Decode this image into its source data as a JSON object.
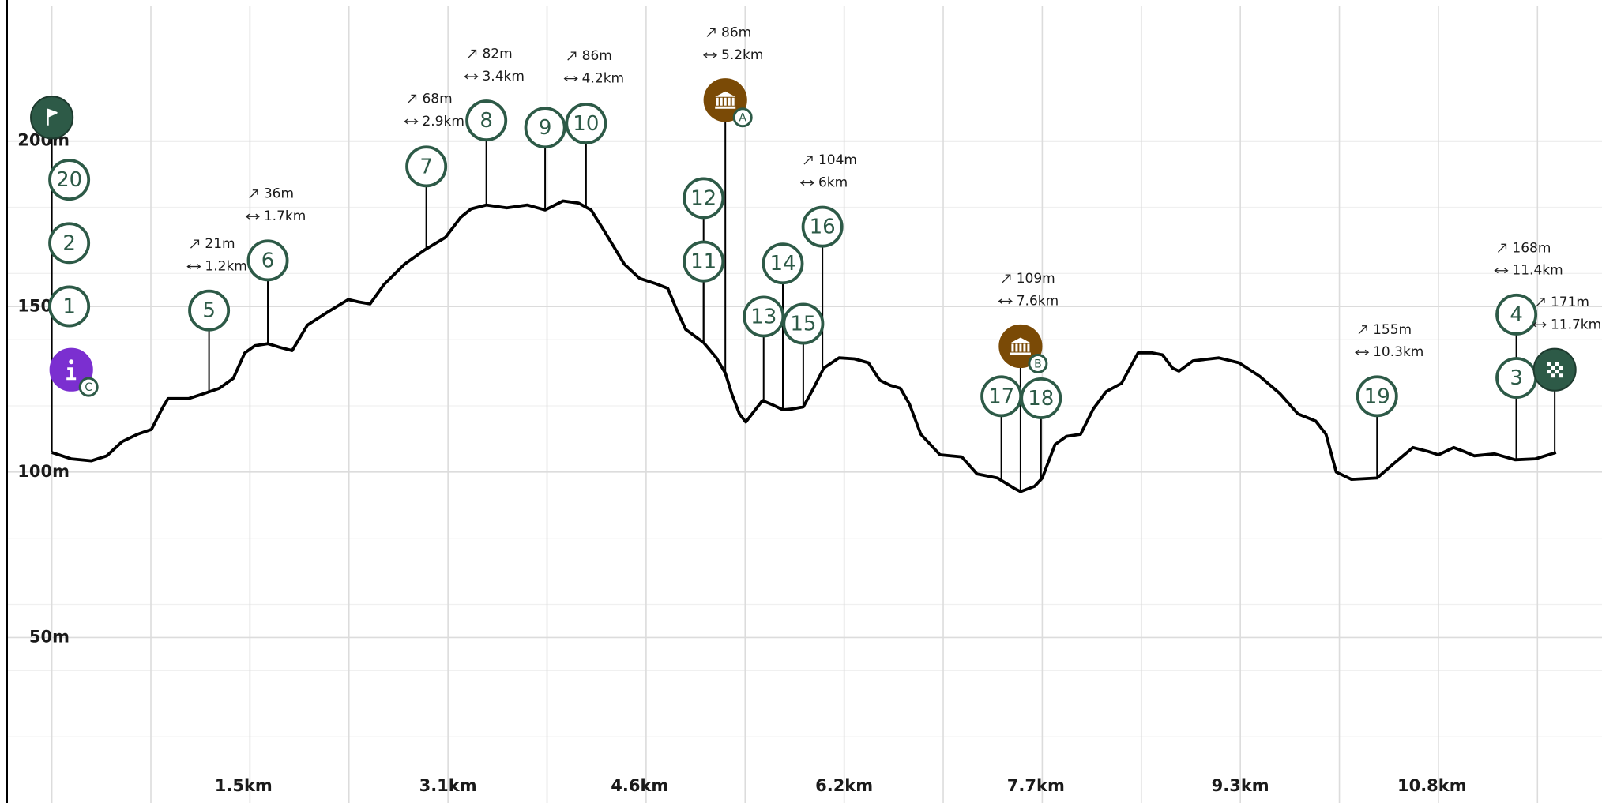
{
  "chart_data": {
    "type": "line",
    "color": "#000000",
    "x": [
      0,
      0.15,
      0.31,
      0.43,
      0.55,
      0.67,
      0.78,
      0.87,
      0.91,
      1.07,
      1.19,
      1.31,
      1.42,
      1.51,
      1.59,
      1.69,
      1.79,
      1.88,
      2.0,
      2.16,
      2.32,
      2.4,
      2.49,
      2.6,
      2.76,
      2.92,
      3.08,
      3.2,
      3.28,
      3.4,
      3.56,
      3.72,
      3.86,
      4.0,
      4.12,
      4.22,
      4.32,
      4.48,
      4.6,
      4.72,
      4.82,
      4.88,
      4.96,
      5.1,
      5.2,
      5.27,
      5.32,
      5.38,
      5.43,
      5.48,
      5.56,
      5.64,
      5.72,
      5.8,
      5.88,
      5.96,
      6.04,
      6.16,
      6.28,
      6.39,
      6.48,
      6.56,
      6.64,
      6.71,
      6.8,
      6.95,
      7.12,
      7.24,
      7.4,
      7.53,
      7.58,
      7.69,
      7.75,
      7.85,
      7.94,
      8.05,
      8.15,
      8.25,
      8.37,
      8.5,
      8.61,
      8.69,
      8.77,
      8.82,
      8.93,
      9.13,
      9.29,
      9.45,
      9.61,
      9.75,
      9.89,
      9.97,
      10.05,
      10.17,
      10.37,
      10.49,
      10.65,
      10.77,
      10.85,
      10.97,
      11.05,
      11.13,
      11.29,
      11.45,
      11.61,
      11.77
    ],
    "values": [
      105.9,
      104.0,
      103.4,
      104.9,
      109.2,
      111.4,
      112.9,
      119.7,
      122.2,
      122.2,
      123.7,
      125.3,
      128.3,
      136.0,
      138.2,
      138.8,
      137.6,
      136.7,
      144.4,
      148.4,
      152.1,
      151.4,
      150.8,
      156.7,
      162.8,
      167.2,
      170.9,
      177.0,
      179.5,
      180.7,
      179.8,
      180.7,
      179.2,
      181.9,
      181.3,
      179.2,
      173.0,
      162.8,
      158.5,
      157.0,
      155.5,
      149.9,
      143.1,
      139.1,
      134.5,
      129.9,
      123.7,
      117.6,
      115.1,
      117.6,
      121.6,
      120.3,
      118.8,
      119.1,
      119.7,
      125.3,
      131.4,
      134.5,
      134.2,
      133.0,
      127.7,
      126.2,
      125.3,
      120.6,
      111.4,
      105.2,
      104.6,
      99.4,
      98.2,
      95.1,
      94.1,
      95.7,
      98.2,
      108.3,
      110.8,
      111.4,
      119.1,
      124.3,
      126.8,
      136.0,
      136.0,
      135.4,
      131.4,
      130.5,
      133.6,
      134.5,
      133.0,
      129.0,
      123.7,
      117.6,
      115.4,
      111.4,
      100.0,
      97.8,
      98.2,
      102.2,
      107.4,
      106.2,
      105.2,
      107.4,
      106.2,
      104.9,
      105.5,
      103.7,
      104.0,
      105.9
    ],
    "xlim": [
      -0.35,
      12.13
    ],
    "ylim": [
      0,
      240
    ],
    "xticks": [
      {
        "value": 1.5,
        "label": "1.5km"
      },
      {
        "value": 3.1,
        "label": "3.1km"
      },
      {
        "value": 4.6,
        "label": "4.6km"
      },
      {
        "value": 6.2,
        "label": "6.2km"
      },
      {
        "value": 7.7,
        "label": "7.7km"
      },
      {
        "value": 9.3,
        "label": "9.3km"
      },
      {
        "value": 10.8,
        "label": "10.8km"
      }
    ],
    "yticks": [
      {
        "value": 50,
        "label": "50m"
      },
      {
        "value": 100,
        "label": "100m"
      },
      {
        "value": 150,
        "label": "150m"
      },
      {
        "value": 200,
        "label": "200m"
      }
    ],
    "x_grid": [
      0,
      0.775,
      1.55,
      2.325,
      3.1,
      3.875,
      4.65,
      5.425,
      6.2,
      6.975,
      7.75,
      8.525,
      9.3,
      10.075,
      10.85,
      11.625
    ],
    "y_minor_grid": [
      20,
      40,
      60,
      80,
      120,
      140,
      160,
      180
    ],
    "grid": true,
    "marker_color": "#2d5a47",
    "markers": [
      {
        "label": "1",
        "x": 0
      },
      {
        "label": "2",
        "x": 0
      },
      {
        "label": "20",
        "x": 0
      },
      {
        "label": "3",
        "x": 11.46
      },
      {
        "label": "4",
        "x": 11.46,
        "gain": "168m",
        "distance": "11.4km"
      },
      {
        "label": "5",
        "x": 1.23,
        "gain": "21m",
        "distance": "1.2km"
      },
      {
        "label": "6",
        "x": 1.69,
        "gain": "36m",
        "distance": "1.7km"
      },
      {
        "label": "7",
        "x": 2.93,
        "gain": "68m",
        "distance": "2.9km"
      },
      {
        "label": "8",
        "x": 3.4,
        "gain": "82m",
        "distance": "3.4km"
      },
      {
        "label": "9",
        "x": 3.86
      },
      {
        "label": "10",
        "x": 4.18,
        "gain": "86m",
        "distance": "4.2km"
      },
      {
        "label": "11",
        "x": 5.1
      },
      {
        "label": "12",
        "x": 5.1
      },
      {
        "label": "13",
        "x": 5.57
      },
      {
        "label": "14",
        "x": 5.72
      },
      {
        "label": "15",
        "x": 5.88
      },
      {
        "label": "16",
        "x": 6.03,
        "gain": "104m",
        "distance": "6km"
      },
      {
        "label": "17",
        "x": 7.43
      },
      {
        "label": "18",
        "x": 7.74
      },
      {
        "label": "19",
        "x": 10.37,
        "gain": "155m",
        "distance": "10.3km"
      }
    ],
    "pois": [
      {
        "icon": "start",
        "x": 0,
        "color": "#2d5a47"
      },
      {
        "icon": "info",
        "x": 0,
        "color": "#7b2fd0",
        "badge": "C"
      },
      {
        "icon": "museum",
        "x": 5.27,
        "color": "#7a4a06",
        "badge": "A",
        "gain": "86m",
        "distance": "5.2km"
      },
      {
        "icon": "museum",
        "x": 7.58,
        "color": "#7a4a06",
        "badge": "B",
        "gain": "109m",
        "distance": "7.6km"
      },
      {
        "icon": "finish",
        "x": 11.76,
        "color": "#2d5a47",
        "gain": "171m",
        "distance": "11.7km"
      }
    ]
  }
}
